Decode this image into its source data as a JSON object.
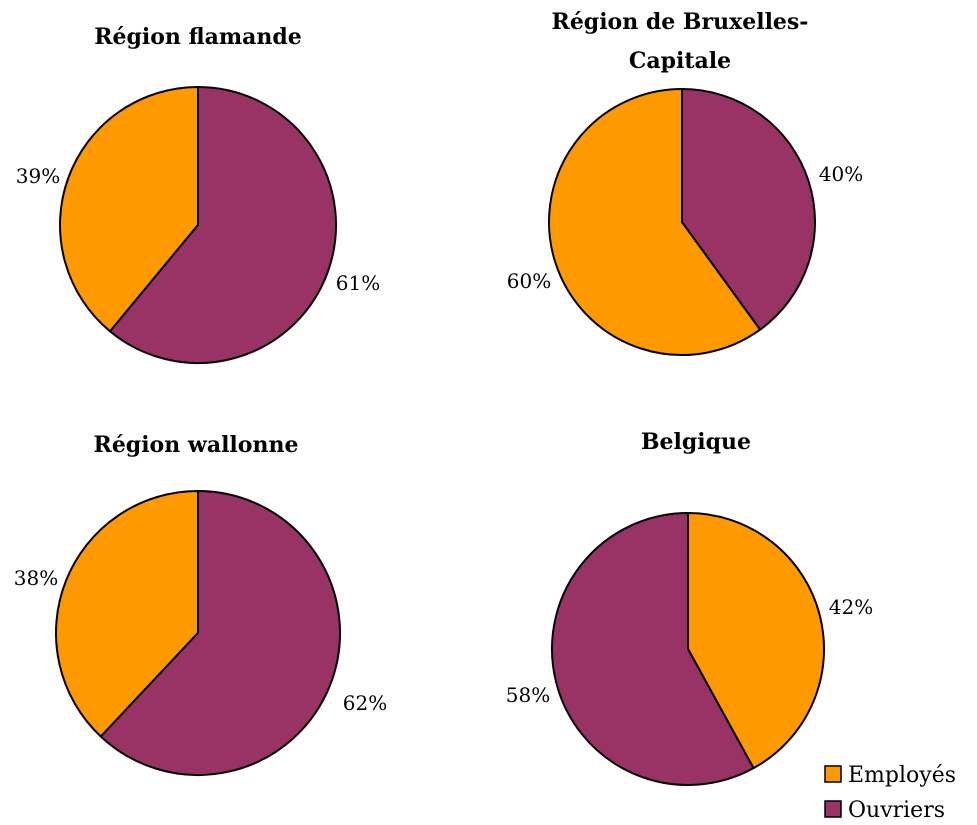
{
  "colors": {
    "employes": "#FF9900",
    "ouvriers": "#993366",
    "stroke": "#000000"
  },
  "legend": {
    "employes": "Employés",
    "ouvriers": "Ouvriers"
  },
  "chart_data": [
    {
      "type": "pie",
      "title": [
        "Région flamande"
      ],
      "slices": [
        {
          "label": "Employés",
          "value": 39,
          "text": "39%"
        },
        {
          "label": "Ouvriers",
          "value": 61,
          "text": "61%"
        }
      ]
    },
    {
      "type": "pie",
      "title": [
        "Région de Bruxelles-",
        "Capitale"
      ],
      "slices": [
        {
          "label": "Employés",
          "value": 60,
          "text": "60%"
        },
        {
          "label": "Ouvriers",
          "value": 40,
          "text": "40%"
        }
      ]
    },
    {
      "type": "pie",
      "title": [
        "Région wallonne"
      ],
      "slices": [
        {
          "label": "Employés",
          "value": 38,
          "text": "38%"
        },
        {
          "label": "Ouvriers",
          "value": 62,
          "text": "62%"
        }
      ]
    },
    {
      "type": "pie",
      "title": [
        "Belgique"
      ],
      "slices": [
        {
          "label": "Employés",
          "value": 42,
          "text": "42%"
        },
        {
          "label": "Ouvriers",
          "value": 58,
          "text": "58%"
        }
      ]
    }
  ]
}
